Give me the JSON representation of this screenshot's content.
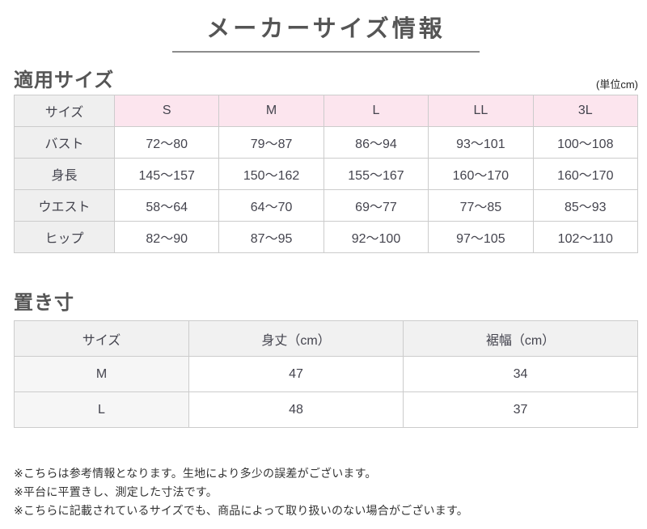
{
  "page": {
    "title": "メーカーサイズ情報"
  },
  "applicable_size": {
    "heading": "適用サイズ",
    "unit_note": "(単位cm)",
    "columns": [
      "サイズ",
      "S",
      "M",
      "L",
      "LL",
      "3L"
    ],
    "rows": [
      {
        "label": "バスト",
        "values": [
          "72～80",
          "79～87",
          "86～94",
          "93～101",
          "100～108"
        ]
      },
      {
        "label": "身長",
        "values": [
          "145～157",
          "150～162",
          "155～167",
          "160～170",
          "160～170"
        ]
      },
      {
        "label": "ウエスト",
        "values": [
          "58～64",
          "64～70",
          "69～77",
          "77～85",
          "85～93"
        ]
      },
      {
        "label": "ヒップ",
        "values": [
          "82～90",
          "87～95",
          "92～100",
          "97～105",
          "102～110"
        ]
      }
    ]
  },
  "flat_measurements": {
    "heading": "置き寸",
    "columns": [
      "サイズ",
      "身丈（cm）",
      "裾幅（cm）"
    ],
    "rows": [
      {
        "label": "M",
        "values": [
          "47",
          "34"
        ]
      },
      {
        "label": "L",
        "values": [
          "48",
          "37"
        ]
      }
    ]
  },
  "notes": [
    "※こちらは参考情報となります。生地により多少の誤差がございます。",
    "※平台に平置きし、測定した寸法です。",
    "※こちらに記載されているサイズでも、商品によって取り扱いのない場合がございます。"
  ],
  "colors": {
    "header_pink": "#fce5ee",
    "header_gray": "#efefef",
    "border": "#cccccc",
    "title_text": "#555555",
    "cell_text": "#44444e"
  }
}
